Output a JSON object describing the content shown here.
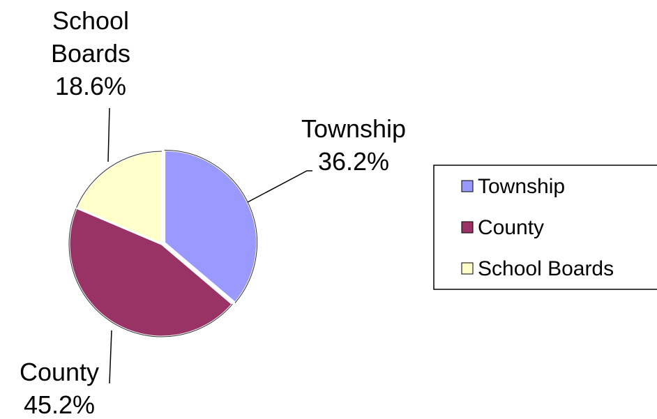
{
  "chart_data": {
    "type": "pie",
    "categories": [
      "Township",
      "County",
      "School Boards"
    ],
    "values": [
      36.2,
      45.2,
      18.6
    ],
    "value_labels": [
      "36.2%",
      "45.2%",
      "18.6%"
    ],
    "colors": [
      "#9999ff",
      "#993366",
      "#ffffcc"
    ],
    "legend": "right"
  }
}
